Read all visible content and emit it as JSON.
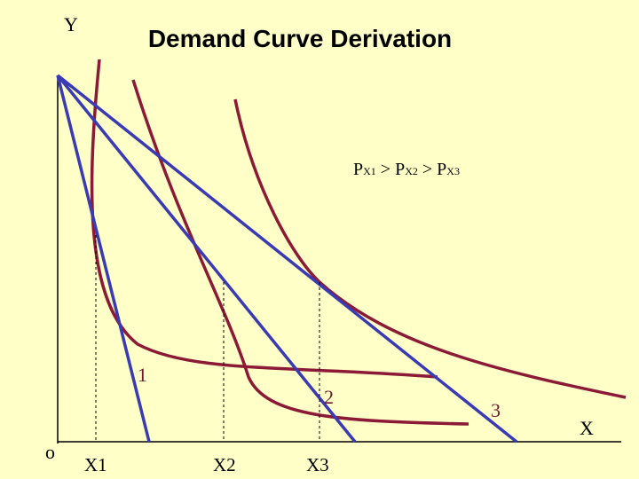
{
  "title": "Demand Curve Derivation",
  "axes": {
    "y_label": "Y",
    "x_label": "X",
    "origin_label": "o"
  },
  "price_relation": [
    {
      "main": "P",
      "sub": "X1"
    },
    {
      "main": " > "
    },
    {
      "main": "P",
      "sub": "X2"
    },
    {
      "main": " > "
    },
    {
      "main": "P",
      "sub": "X3"
    }
  ],
  "quantity_labels": [
    "X1",
    "X2",
    "X3"
  ],
  "equilibrium_labels": [
    "1",
    "2",
    "3"
  ],
  "colors": {
    "background": "#ffffc8",
    "budget_line": "#3a3ab4",
    "indifference_curve": "#8b1a36",
    "guide_line": "#000000",
    "point_label": "#6b1a2e"
  }
}
